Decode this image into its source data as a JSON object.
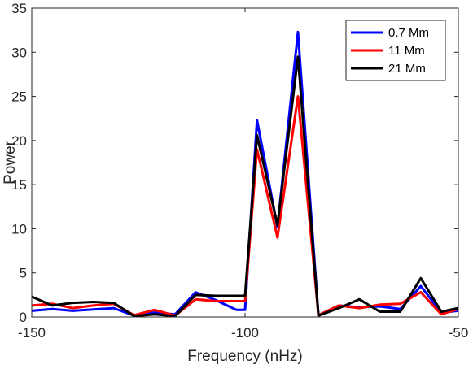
{
  "chart_data": {
    "type": "line",
    "title": "",
    "xlabel": "Frequency (nHz)",
    "ylabel": "Power",
    "xlim": [
      -150,
      -50
    ],
    "ylim": [
      0,
      35
    ],
    "xticks": [
      -150,
      -100,
      -50
    ],
    "yticks": [
      0,
      5,
      10,
      15,
      20,
      25,
      30,
      35
    ],
    "grid": false,
    "legend_position": "top-right",
    "x": [
      -150,
      -145.2,
      -140.4,
      -135.6,
      -130.8,
      -126.0,
      -121.2,
      -116.4,
      -111.6,
      -106.8,
      -102.0,
      -100.0,
      -97.2,
      -92.4,
      -87.6,
      -82.8,
      -78.0,
      -73.2,
      -68.4,
      -63.6,
      -58.8,
      -54.0,
      -50.0
    ],
    "series": [
      {
        "name": "0.7 Mm",
        "color": "#0000ff",
        "values": [
          0.7,
          0.9,
          0.7,
          0.85,
          1.0,
          0.15,
          0.5,
          0.3,
          2.8,
          1.9,
          0.8,
          0.8,
          22.3,
          10.2,
          32.3,
          0.2,
          1.3,
          1.1,
          1.2,
          0.9,
          3.5,
          0.5,
          0.7
        ]
      },
      {
        "name": "11 Mm",
        "color": "#ff0000",
        "values": [
          1.3,
          1.5,
          1.0,
          1.3,
          1.5,
          0.2,
          0.8,
          0.15,
          2.0,
          1.8,
          1.8,
          1.8,
          19.0,
          9.0,
          25.0,
          0.2,
          1.3,
          1.0,
          1.4,
          1.5,
          2.8,
          0.3,
          0.9
        ]
      },
      {
        "name": "21 Mm",
        "color": "#000000",
        "values": [
          2.3,
          1.3,
          1.6,
          1.7,
          1.6,
          0.1,
          0.3,
          0.1,
          2.5,
          2.4,
          2.4,
          2.4,
          20.6,
          10.4,
          29.5,
          0.15,
          1.0,
          2.0,
          0.6,
          0.6,
          4.4,
          0.6,
          1.0
        ]
      }
    ]
  }
}
